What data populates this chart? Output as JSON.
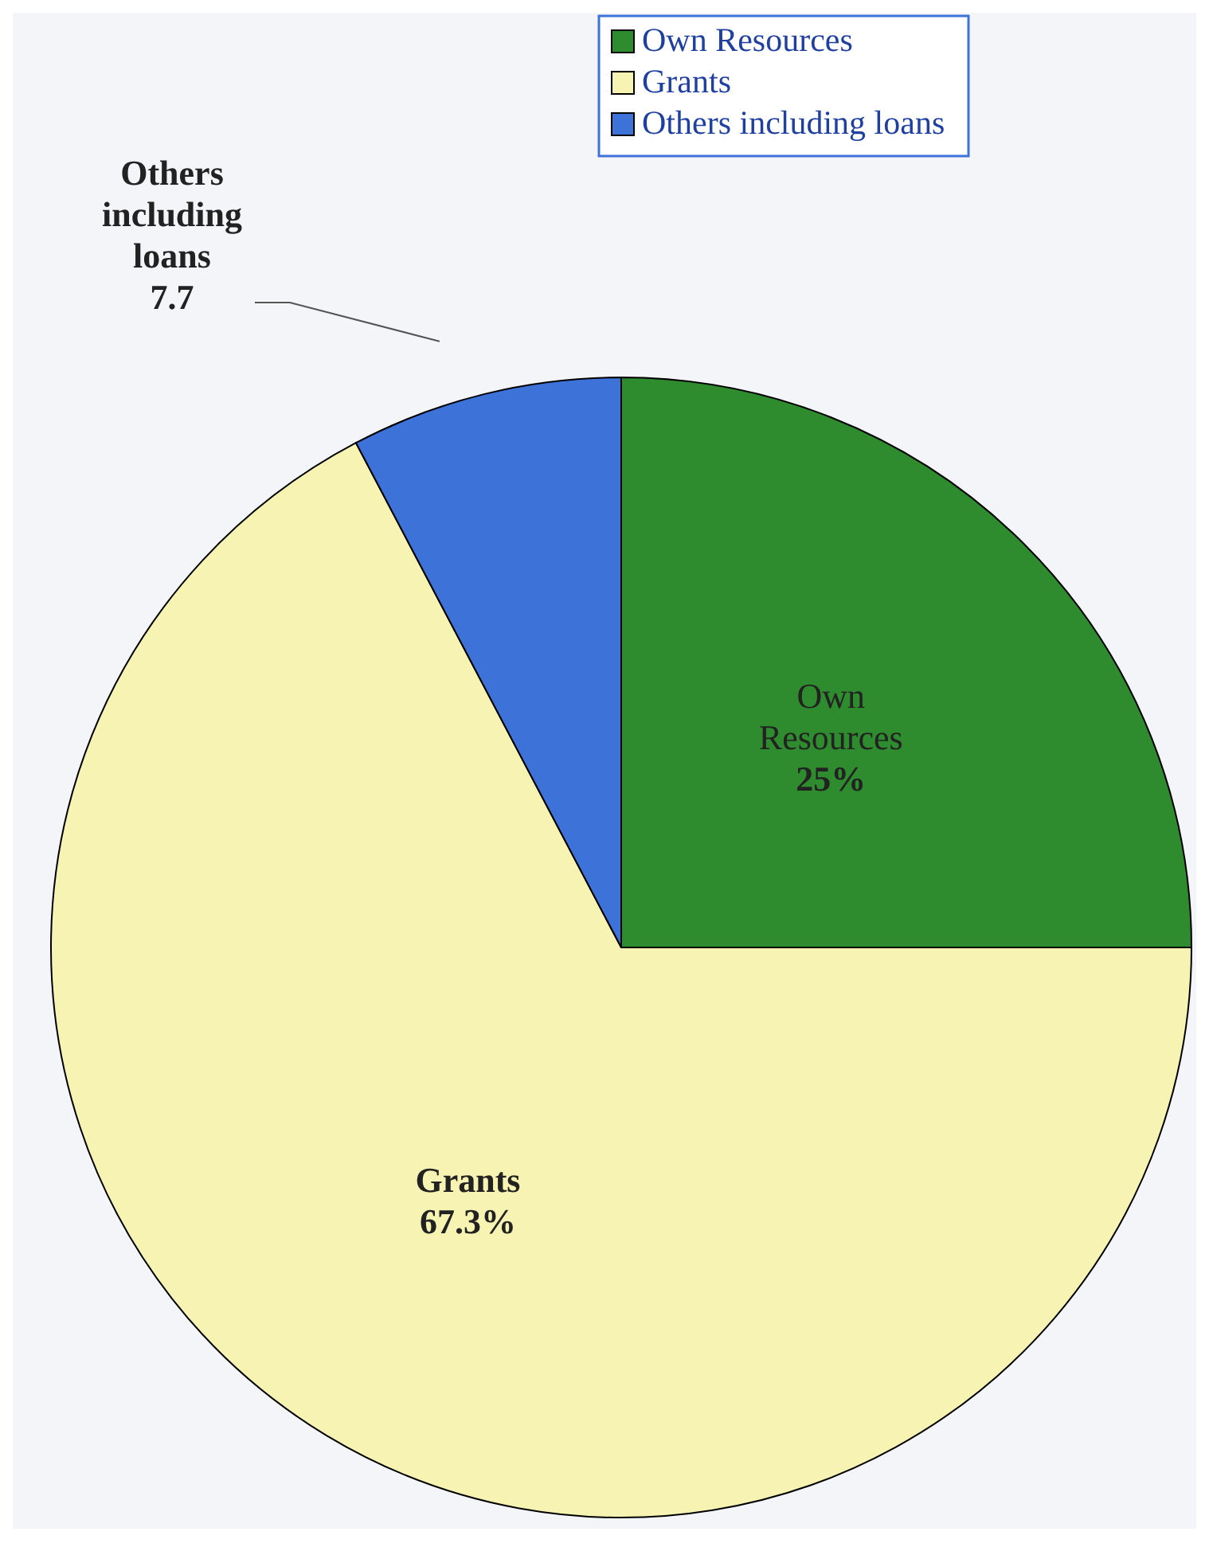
{
  "chart_data": {
    "type": "pie",
    "categories": [
      "Own Resources",
      "Grants",
      "Others including loans"
    ],
    "values": [
      25,
      67.3,
      7.7
    ],
    "colors": [
      "#2e8b2e",
      "#f7f3b2",
      "#3d72d8"
    ],
    "value_labels": [
      "25%",
      "67.3%",
      "7.7"
    ],
    "legend": "top"
  }
}
